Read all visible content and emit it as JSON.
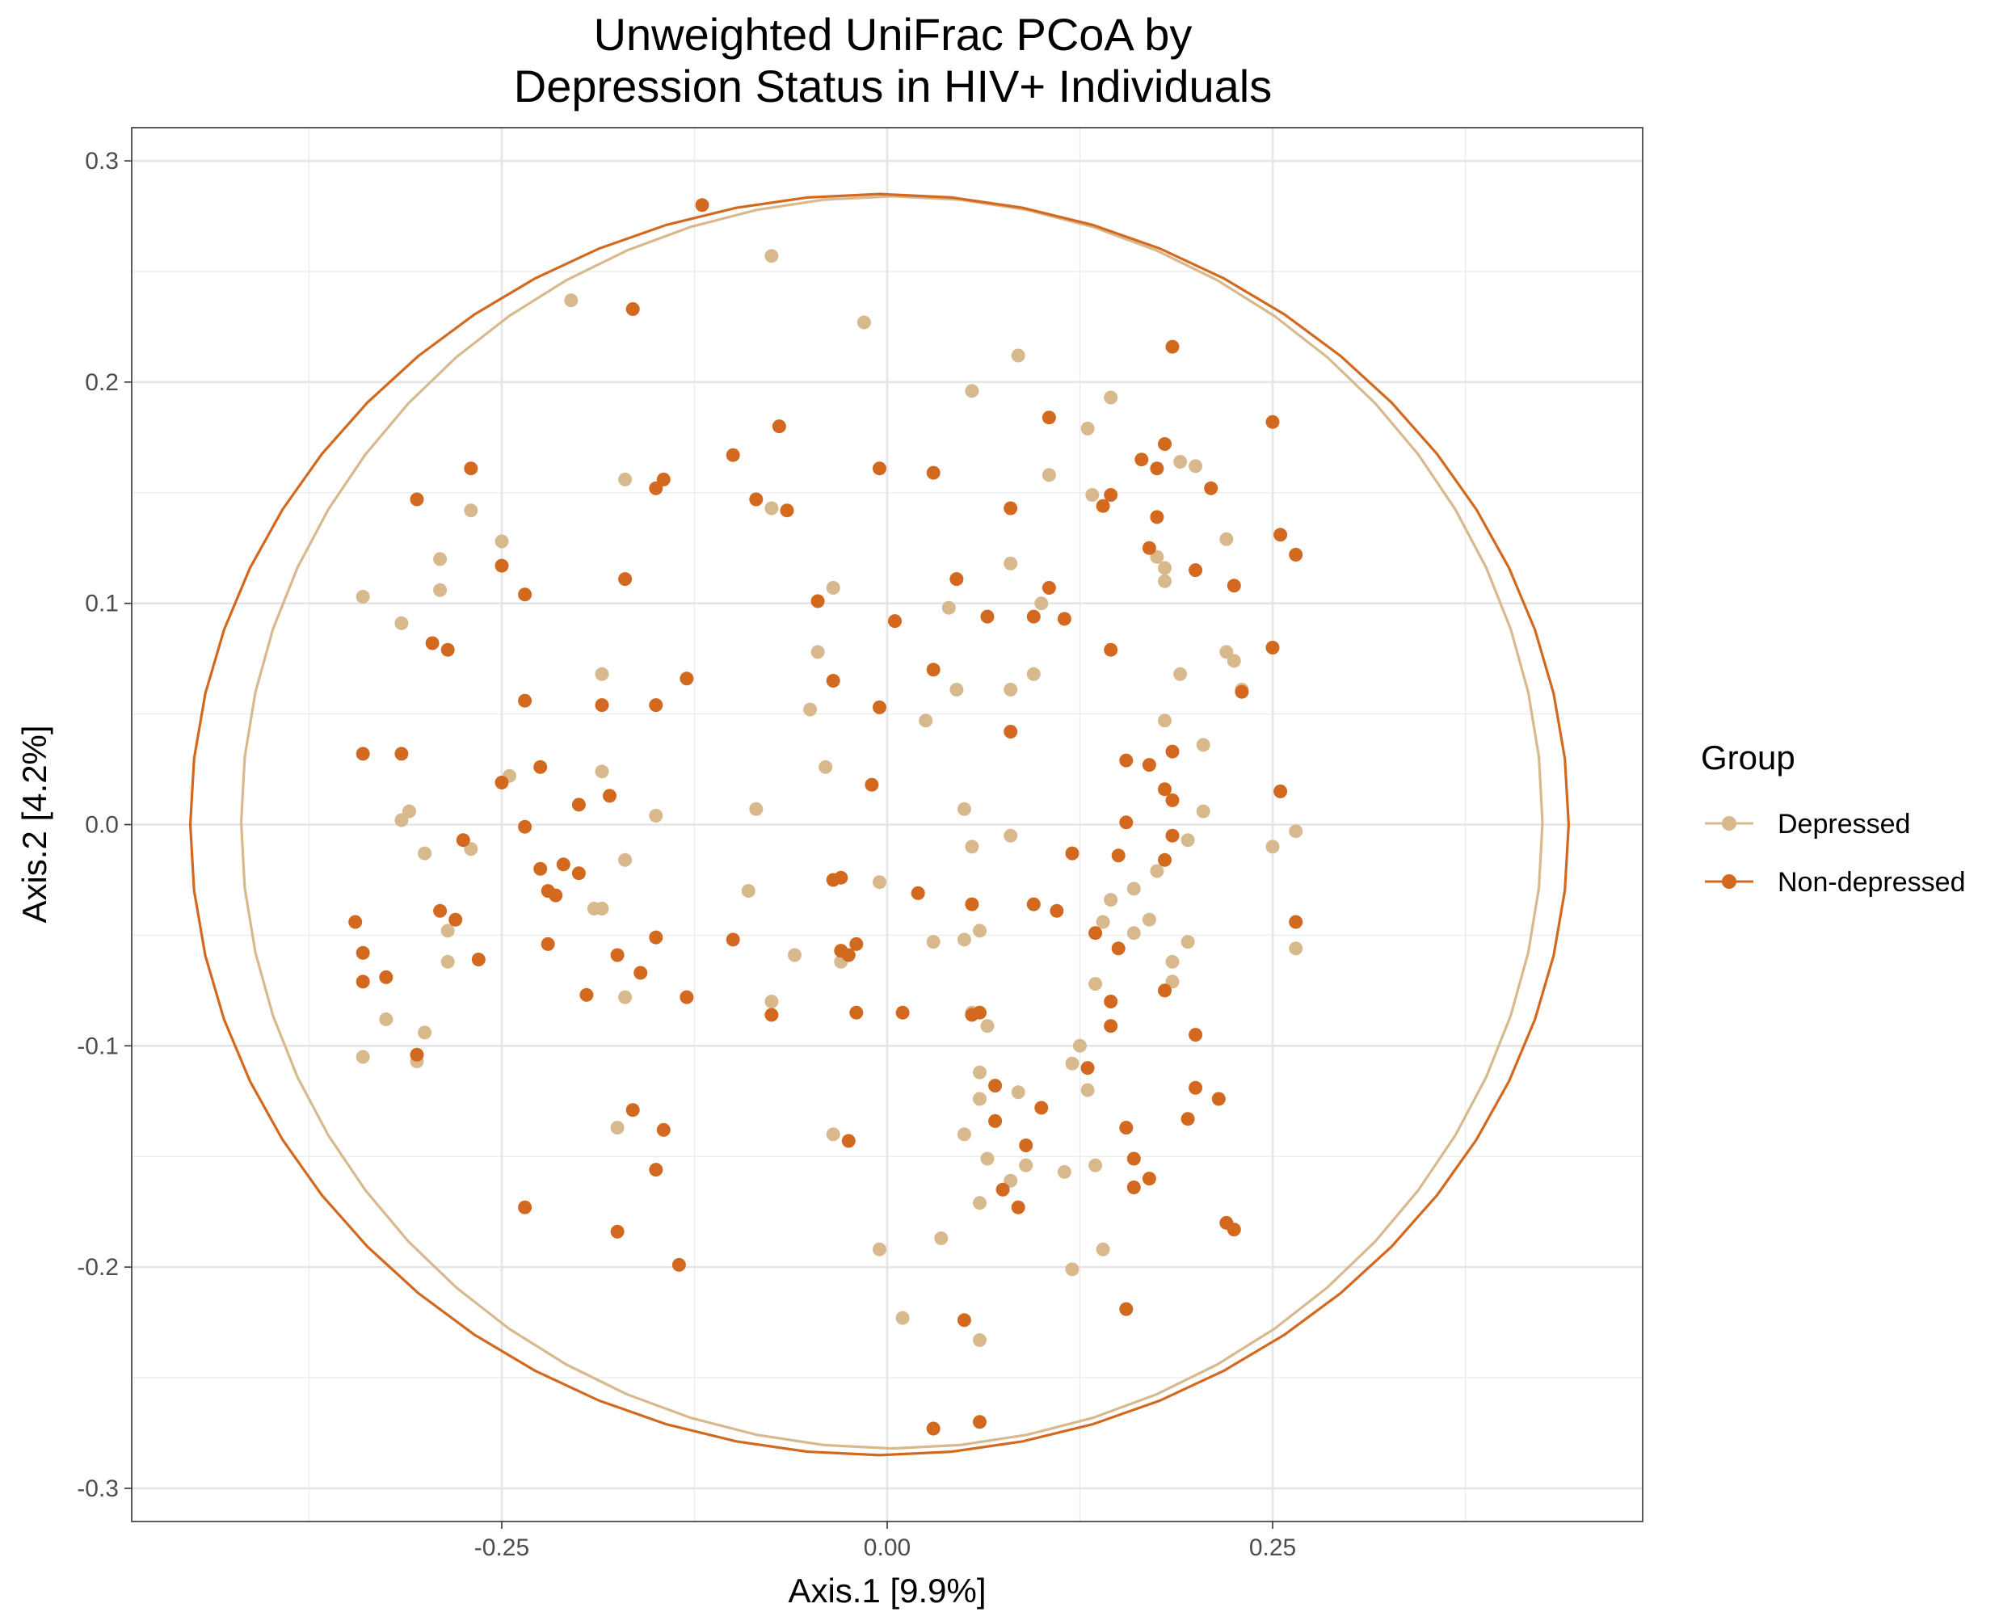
{
  "chart_data": {
    "type": "scatter",
    "title": [
      "Unweighted UniFrac PCoA by",
      "Depression Status in HIV+ Individuals"
    ],
    "xlabel": "Axis.1   [9.9%]",
    "ylabel": "Axis.2   [4.2%]",
    "xlim": [
      -0.49,
      0.49
    ],
    "ylim": [
      -0.315,
      0.315
    ],
    "xticks": [
      -0.25,
      0.0,
      0.25
    ],
    "xtick_labels": [
      "-0.25",
      "0.00",
      "0.25"
    ],
    "yticks": [
      -0.3,
      -0.2,
      -0.1,
      0.0,
      0.1,
      0.2,
      0.3
    ],
    "ytick_labels": [
      "-0.3",
      "-0.2",
      "-0.1",
      "0.0",
      "0.1",
      "0.2",
      "0.3"
    ],
    "grid": true,
    "legend": {
      "title": "Group",
      "position": "right"
    },
    "series": [
      {
        "name": "Depressed",
        "color": "#D8B98E",
        "ellipse": {
          "cx": 0.003,
          "cy": 0.001,
          "rx": 0.422,
          "ry": 0.283
        },
        "points": [
          [
            -0.075,
            0.257
          ],
          [
            -0.205,
            0.237
          ],
          [
            -0.015,
            0.227
          ],
          [
            0.085,
            0.212
          ],
          [
            0.055,
            0.196
          ],
          [
            0.145,
            0.193
          ],
          [
            0.13,
            0.179
          ],
          [
            -0.17,
            0.156
          ],
          [
            0.105,
            0.158
          ],
          [
            0.133,
            0.149
          ],
          [
            0.19,
            0.164
          ],
          [
            0.2,
            0.162
          ],
          [
            -0.075,
            0.143
          ],
          [
            -0.27,
            0.142
          ],
          [
            -0.25,
            0.128
          ],
          [
            0.22,
            0.129
          ],
          [
            -0.29,
            0.12
          ],
          [
            0.175,
            0.121
          ],
          [
            0.18,
            0.116
          ],
          [
            0.08,
            0.118
          ],
          [
            -0.29,
            0.106
          ],
          [
            -0.035,
            0.107
          ],
          [
            0.18,
            0.11
          ],
          [
            -0.34,
            0.103
          ],
          [
            0.04,
            0.098
          ],
          [
            0.1,
            0.1
          ],
          [
            -0.315,
            0.091
          ],
          [
            -0.045,
            0.078
          ],
          [
            0.225,
            0.074
          ],
          [
            0.22,
            0.078
          ],
          [
            -0.185,
            0.068
          ],
          [
            0.095,
            0.068
          ],
          [
            0.19,
            0.068
          ],
          [
            0.08,
            0.061
          ],
          [
            0.045,
            0.061
          ],
          [
            0.23,
            0.061
          ],
          [
            -0.05,
            0.052
          ],
          [
            0.025,
            0.047
          ],
          [
            0.18,
            0.047
          ],
          [
            0.205,
            0.036
          ],
          [
            -0.04,
            0.026
          ],
          [
            -0.185,
            0.024
          ],
          [
            -0.245,
            0.022
          ],
          [
            -0.31,
            0.006
          ],
          [
            -0.315,
            0.002
          ],
          [
            -0.085,
            0.007
          ],
          [
            0.05,
            0.007
          ],
          [
            -0.15,
            0.004
          ],
          [
            0.205,
            0.006
          ],
          [
            0.265,
            -0.003
          ],
          [
            0.08,
            -0.005
          ],
          [
            0.195,
            -0.007
          ],
          [
            0.25,
            -0.01
          ],
          [
            0.055,
            -0.01
          ],
          [
            -0.27,
            -0.011
          ],
          [
            -0.3,
            -0.013
          ],
          [
            -0.17,
            -0.016
          ],
          [
            0.175,
            -0.021
          ],
          [
            -0.005,
            -0.026
          ],
          [
            -0.09,
            -0.03
          ],
          [
            0.16,
            -0.029
          ],
          [
            0.145,
            -0.034
          ],
          [
            -0.185,
            -0.038
          ],
          [
            -0.19,
            -0.038
          ],
          [
            0.17,
            -0.043
          ],
          [
            0.14,
            -0.044
          ],
          [
            -0.285,
            -0.048
          ],
          [
            0.06,
            -0.048
          ],
          [
            0.16,
            -0.049
          ],
          [
            0.195,
            -0.053
          ],
          [
            0.03,
            -0.053
          ],
          [
            0.05,
            -0.052
          ],
          [
            0.265,
            -0.056
          ],
          [
            -0.06,
            -0.059
          ],
          [
            -0.03,
            -0.062
          ],
          [
            -0.285,
            -0.062
          ],
          [
            0.185,
            -0.062
          ],
          [
            0.135,
            -0.072
          ],
          [
            0.185,
            -0.071
          ],
          [
            -0.17,
            -0.078
          ],
          [
            -0.075,
            -0.08
          ],
          [
            0.055,
            -0.085
          ],
          [
            -0.325,
            -0.088
          ],
          [
            0.065,
            -0.091
          ],
          [
            -0.3,
            -0.094
          ],
          [
            0.125,
            -0.1
          ],
          [
            -0.34,
            -0.105
          ],
          [
            -0.305,
            -0.107
          ],
          [
            0.12,
            -0.108
          ],
          [
            0.06,
            -0.112
          ],
          [
            0.085,
            -0.121
          ],
          [
            0.13,
            -0.12
          ],
          [
            0.06,
            -0.124
          ],
          [
            -0.175,
            -0.137
          ],
          [
            -0.035,
            -0.14
          ],
          [
            0.05,
            -0.14
          ],
          [
            0.065,
            -0.151
          ],
          [
            0.09,
            -0.154
          ],
          [
            0.135,
            -0.154
          ],
          [
            0.115,
            -0.157
          ],
          [
            0.08,
            -0.161
          ],
          [
            0.06,
            -0.171
          ],
          [
            0.035,
            -0.187
          ],
          [
            -0.005,
            -0.192
          ],
          [
            0.14,
            -0.192
          ],
          [
            0.12,
            -0.201
          ],
          [
            0.01,
            -0.223
          ],
          [
            0.06,
            -0.233
          ]
        ]
      },
      {
        "name": "Non-depressed",
        "color": "#D2691E",
        "ellipse": {
          "cx": -0.005,
          "cy": 0.0,
          "rx": 0.447,
          "ry": 0.285
        },
        "points": [
          [
            -0.12,
            0.28
          ],
          [
            -0.165,
            0.233
          ],
          [
            0.185,
            0.216
          ],
          [
            0.25,
            0.182
          ],
          [
            0.105,
            0.184
          ],
          [
            -0.07,
            0.18
          ],
          [
            0.165,
            0.165
          ],
          [
            0.18,
            0.172
          ],
          [
            -0.1,
            0.167
          ],
          [
            0.175,
            0.161
          ],
          [
            -0.005,
            0.161
          ],
          [
            0.03,
            0.159
          ],
          [
            -0.27,
            0.161
          ],
          [
            -0.145,
            0.156
          ],
          [
            0.21,
            0.152
          ],
          [
            -0.15,
            0.152
          ],
          [
            -0.085,
            0.147
          ],
          [
            0.145,
            0.149
          ],
          [
            -0.305,
            0.147
          ],
          [
            -0.065,
            0.142
          ],
          [
            0.08,
            0.143
          ],
          [
            0.14,
            0.144
          ],
          [
            0.175,
            0.139
          ],
          [
            0.255,
            0.131
          ],
          [
            0.265,
            0.122
          ],
          [
            0.17,
            0.125
          ],
          [
            0.2,
            0.115
          ],
          [
            -0.25,
            0.117
          ],
          [
            0.045,
            0.111
          ],
          [
            -0.17,
            0.111
          ],
          [
            0.225,
            0.108
          ],
          [
            0.105,
            0.107
          ],
          [
            -0.235,
            0.104
          ],
          [
            -0.045,
            0.101
          ],
          [
            0.065,
            0.094
          ],
          [
            0.095,
            0.094
          ],
          [
            0.115,
            0.093
          ],
          [
            0.005,
            0.092
          ],
          [
            -0.295,
            0.082
          ],
          [
            -0.285,
            0.079
          ],
          [
            0.145,
            0.079
          ],
          [
            0.25,
            0.08
          ],
          [
            0.03,
            0.07
          ],
          [
            -0.13,
            0.066
          ],
          [
            -0.035,
            0.065
          ],
          [
            0.23,
            0.06
          ],
          [
            -0.235,
            0.056
          ],
          [
            -0.185,
            0.054
          ],
          [
            -0.15,
            0.054
          ],
          [
            -0.005,
            0.053
          ],
          [
            0.08,
            0.042
          ],
          [
            -0.34,
            0.032
          ],
          [
            -0.315,
            0.032
          ],
          [
            0.155,
            0.029
          ],
          [
            0.17,
            0.027
          ],
          [
            0.185,
            0.033
          ],
          [
            -0.225,
            0.026
          ],
          [
            -0.25,
            0.019
          ],
          [
            -0.01,
            0.018
          ],
          [
            0.18,
            0.016
          ],
          [
            0.255,
            0.015
          ],
          [
            -0.18,
            0.013
          ],
          [
            0.185,
            0.011
          ],
          [
            -0.2,
            0.009
          ],
          [
            0.155,
            0.001
          ],
          [
            -0.235,
            -0.001
          ],
          [
            0.185,
            -0.005
          ],
          [
            -0.275,
            -0.007
          ],
          [
            0.12,
            -0.013
          ],
          [
            0.15,
            -0.014
          ],
          [
            0.18,
            -0.016
          ],
          [
            -0.225,
            -0.02
          ],
          [
            -0.21,
            -0.018
          ],
          [
            -0.2,
            -0.022
          ],
          [
            -0.035,
            -0.025
          ],
          [
            -0.03,
            -0.024
          ],
          [
            -0.22,
            -0.03
          ],
          [
            0.02,
            -0.031
          ],
          [
            -0.215,
            -0.032
          ],
          [
            0.055,
            -0.036
          ],
          [
            0.095,
            -0.036
          ],
          [
            0.11,
            -0.039
          ],
          [
            -0.29,
            -0.039
          ],
          [
            -0.28,
            -0.043
          ],
          [
            -0.345,
            -0.044
          ],
          [
            0.265,
            -0.044
          ],
          [
            0.135,
            -0.049
          ],
          [
            -0.15,
            -0.051
          ],
          [
            -0.1,
            -0.052
          ],
          [
            -0.02,
            -0.054
          ],
          [
            -0.22,
            -0.054
          ],
          [
            0.15,
            -0.056
          ],
          [
            -0.03,
            -0.057
          ],
          [
            -0.34,
            -0.058
          ],
          [
            -0.265,
            -0.061
          ],
          [
            -0.175,
            -0.059
          ],
          [
            -0.025,
            -0.059
          ],
          [
            -0.16,
            -0.067
          ],
          [
            -0.325,
            -0.069
          ],
          [
            -0.34,
            -0.071
          ],
          [
            0.18,
            -0.075
          ],
          [
            0.145,
            -0.08
          ],
          [
            -0.195,
            -0.077
          ],
          [
            -0.13,
            -0.078
          ],
          [
            -0.075,
            -0.086
          ],
          [
            -0.02,
            -0.085
          ],
          [
            0.01,
            -0.085
          ],
          [
            0.055,
            -0.086
          ],
          [
            0.06,
            -0.085
          ],
          [
            0.145,
            -0.091
          ],
          [
            0.2,
            -0.095
          ],
          [
            -0.305,
            -0.104
          ],
          [
            0.13,
            -0.11
          ],
          [
            0.07,
            -0.118
          ],
          [
            0.2,
            -0.119
          ],
          [
            0.215,
            -0.124
          ],
          [
            0.1,
            -0.128
          ],
          [
            -0.165,
            -0.129
          ],
          [
            0.195,
            -0.133
          ],
          [
            0.07,
            -0.134
          ],
          [
            -0.145,
            -0.138
          ],
          [
            0.155,
            -0.137
          ],
          [
            -0.025,
            -0.143
          ],
          [
            0.09,
            -0.145
          ],
          [
            0.16,
            -0.151
          ],
          [
            -0.15,
            -0.156
          ],
          [
            0.17,
            -0.16
          ],
          [
            0.16,
            -0.164
          ],
          [
            0.075,
            -0.165
          ],
          [
            0.085,
            -0.173
          ],
          [
            -0.235,
            -0.173
          ],
          [
            0.22,
            -0.18
          ],
          [
            0.225,
            -0.183
          ],
          [
            -0.175,
            -0.184
          ],
          [
            -0.135,
            -0.199
          ],
          [
            0.155,
            -0.219
          ],
          [
            0.05,
            -0.224
          ],
          [
            0.03,
            -0.273
          ],
          [
            0.06,
            -0.27
          ]
        ]
      }
    ]
  }
}
